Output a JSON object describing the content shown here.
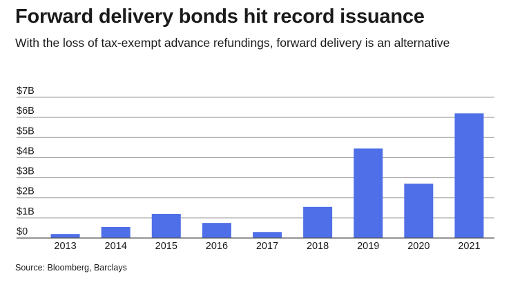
{
  "header": {
    "title": "Forward delivery bonds hit record issuance",
    "subtitle": "With the loss of tax-exempt advance refundings, forward delivery is an alternative"
  },
  "footer": {
    "source": "Source: Bloomberg, Barclays"
  },
  "colors": {
    "bar": "#4f6fe8",
    "grid": "#9a9a9a",
    "axis": "#555555",
    "text": "#1a1a1a"
  },
  "chart_data": {
    "type": "bar",
    "title": "Forward delivery bonds hit record issuance",
    "xlabel": "",
    "ylabel": "",
    "categories": [
      "2013",
      "2014",
      "2015",
      "2016",
      "2017",
      "2018",
      "2019",
      "2020",
      "2021"
    ],
    "values": [
      0.2,
      0.55,
      1.2,
      0.75,
      0.3,
      1.55,
      4.45,
      2.7,
      6.2
    ],
    "ylim": [
      0,
      7
    ],
    "yticks": [
      0,
      1,
      2,
      3,
      4,
      5,
      6,
      7
    ],
    "ytick_labels": [
      "$0",
      "$1B",
      "$2B",
      "$3B",
      "$4B",
      "$5B",
      "$6B",
      "$7B"
    ],
    "grid": true,
    "legend": "none"
  }
}
